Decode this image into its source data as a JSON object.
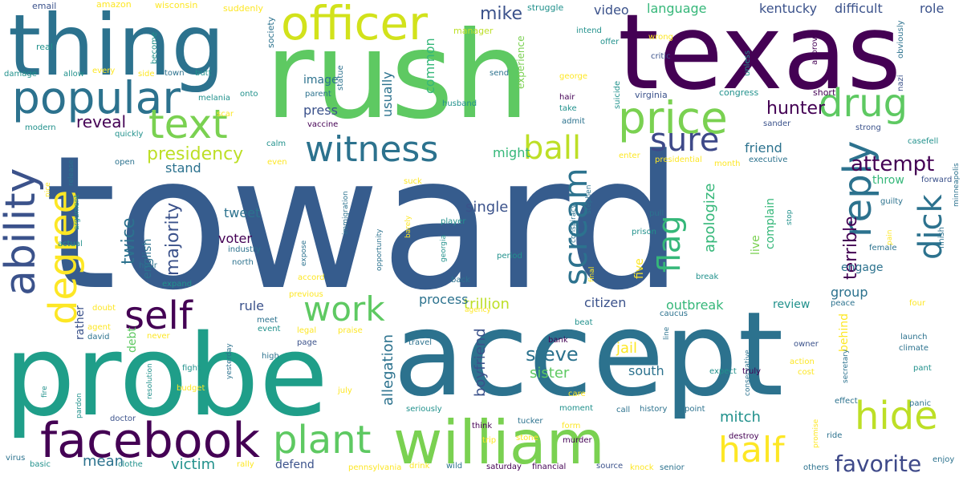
{
  "words": [
    {
      "text": "toward",
      "color": "#365c8d",
      "size": 230
    },
    {
      "text": "rush",
      "color": "#5ec962",
      "size": 150
    },
    {
      "text": "texas",
      "color": "#440154",
      "size": 130
    },
    {
      "text": "accept",
      "color": "#2c728e",
      "size": 145
    },
    {
      "text": "probe",
      "color": "#1f9e89",
      "size": 140
    },
    {
      "text": "thing",
      "color": "#2c728e",
      "size": 105
    },
    {
      "text": "william",
      "color": "#7ad151",
      "size": 75
    },
    {
      "text": "facebook",
      "color": "#440154",
      "size": 60
    },
    {
      "text": "officer",
      "color": "#d2e21b",
      "size": 58
    },
    {
      "text": "popular",
      "color": "#2c728e",
      "size": 55
    },
    {
      "text": "price",
      "color": "#7ad151",
      "size": 55
    },
    {
      "text": "ability",
      "color": "#3b528b",
      "size": 52
    },
    {
      "text": "text",
      "color": "#7ad151",
      "size": 50
    },
    {
      "text": "drug",
      "color": "#5ec962",
      "size": 48
    },
    {
      "text": "hide",
      "color": "#bddf26",
      "size": 48
    },
    {
      "text": "self",
      "color": "#440154",
      "size": 48
    },
    {
      "text": "plant",
      "color": "#5ec962",
      "size": 48
    },
    {
      "text": "degree",
      "color": "#fde725",
      "size": 48
    },
    {
      "text": "reply",
      "color": "#2c728e",
      "size": 48
    },
    {
      "text": "witness",
      "color": "#2c728e",
      "size": 44
    },
    {
      "text": "half",
      "color": "#fde725",
      "size": 44
    },
    {
      "text": "work",
      "color": "#5ec962",
      "size": 42
    },
    {
      "text": "sure",
      "color": "#3e4989",
      "size": 40
    },
    {
      "text": "ball",
      "color": "#bddf26",
      "size": 40
    },
    {
      "text": "scream",
      "color": "#2c728e",
      "size": 40
    },
    {
      "text": "dick",
      "color": "#2c728e",
      "size": 40
    },
    {
      "text": "flag",
      "color": "#35b779",
      "size": 38
    },
    {
      "text": "favorite",
      "color": "#3e4989",
      "size": 28
    },
    {
      "text": "attempt",
      "color": "#440154",
      "size": 26
    },
    {
      "text": "steve",
      "color": "#2c728e",
      "size": 24
    },
    {
      "text": "hunter",
      "color": "#440154",
      "size": 22
    },
    {
      "text": "twice",
      "color": "#2c728e",
      "size": 22
    },
    {
      "text": "majority",
      "color": "#3b528b",
      "size": 22
    },
    {
      "text": "presidency",
      "color": "#bddf26",
      "size": 22
    },
    {
      "text": "terrible",
      "color": "#440154",
      "size": 22
    },
    {
      "text": "mike",
      "color": "#3b528b",
      "size": 22
    },
    {
      "text": "reveal",
      "color": "#440154",
      "size": 20
    },
    {
      "text": "mitch",
      "color": "#21918c",
      "size": 18
    },
    {
      "text": "single",
      "color": "#3b528b",
      "size": 18
    },
    {
      "text": "jail",
      "color": "#fde725",
      "size": 18
    },
    {
      "text": "sister",
      "color": "#5ec962",
      "size": 18
    },
    {
      "text": "victim",
      "color": "#21918c",
      "size": 18
    },
    {
      "text": "mean",
      "color": "#2c728e",
      "size": 18
    },
    {
      "text": "trillion",
      "color": "#bddf26",
      "size": 18
    },
    {
      "text": "apologize",
      "color": "#35b779",
      "size": 18
    },
    {
      "text": "allegation",
      "color": "#2c728e",
      "size": 18
    },
    {
      "text": "boyfriend",
      "color": "#3b528b",
      "size": 18
    },
    {
      "text": "video",
      "color": "#3b528b",
      "size": 16
    },
    {
      "text": "language",
      "color": "#35b779",
      "size": 16
    },
    {
      "text": "kentucky",
      "color": "#3b528b",
      "size": 16
    },
    {
      "text": "difficult",
      "color": "#3b528b",
      "size": 16
    },
    {
      "text": "role",
      "color": "#3b528b",
      "size": 16
    },
    {
      "text": "usually",
      "color": "#2c728e",
      "size": 16
    },
    {
      "text": "common",
      "color": "#35b779",
      "size": 16
    },
    {
      "text": "image",
      "color": "#2c728e",
      "size": 14
    },
    {
      "text": "press",
      "color": "#3b528b",
      "size": 16
    },
    {
      "text": "friend",
      "color": "#2c728e",
      "size": 16
    },
    {
      "text": "stand",
      "color": "#2c728e",
      "size": 16
    },
    {
      "text": "might",
      "color": "#35b779",
      "size": 16
    },
    {
      "text": "tweet",
      "color": "#2c728e",
      "size": 16
    },
    {
      "text": "voter",
      "color": "#440154",
      "size": 16
    },
    {
      "text": "rule",
      "color": "#3b528b",
      "size": 16
    },
    {
      "text": "process",
      "color": "#2c728e",
      "size": 16
    },
    {
      "text": "citizen",
      "color": "#3b528b",
      "size": 16
    },
    {
      "text": "outbreak",
      "color": "#35b779",
      "size": 16
    },
    {
      "text": "review",
      "color": "#21918c",
      "size": 14
    },
    {
      "text": "group",
      "color": "#2c728e",
      "size": 16
    },
    {
      "text": "engage",
      "color": "#2c728e",
      "size": 14
    },
    {
      "text": "throw",
      "color": "#35b779",
      "size": 14
    },
    {
      "text": "south",
      "color": "#2c728e",
      "size": 16
    },
    {
      "text": "defend",
      "color": "#3b528b",
      "size": 14
    },
    {
      "text": "complain",
      "color": "#35b779",
      "size": 14
    },
    {
      "text": "live",
      "color": "#7ad151",
      "size": 14
    },
    {
      "text": "five",
      "color": "#fde725",
      "size": 14
    },
    {
      "text": "behind",
      "color": "#fde725",
      "size": 14
    },
    {
      "text": "debt",
      "color": "#5ec962",
      "size": 14
    },
    {
      "text": "english",
      "color": "#2c728e",
      "size": 14
    },
    {
      "text": "rather",
      "color": "#3b528b",
      "size": 14
    },
    {
      "text": "experience",
      "color": "#7ad151",
      "size": 12
    },
    {
      "text": "email",
      "color": "#3b528b",
      "size": 11
    },
    {
      "text": "amazon",
      "color": "#fde725",
      "size": 11
    },
    {
      "text": "wisconsin",
      "color": "#fde725",
      "size": 11
    },
    {
      "text": "suddenly",
      "color": "#fde725",
      "size": 11
    },
    {
      "text": "society",
      "color": "#2c728e",
      "size": 11
    },
    {
      "text": "struggle",
      "color": "#21918c",
      "size": 11
    },
    {
      "text": "real",
      "color": "#21918c",
      "size": 11
    },
    {
      "text": "become",
      "color": "#21918c",
      "size": 10
    },
    {
      "text": "manager",
      "color": "#bddf26",
      "size": 11
    },
    {
      "text": "intend",
      "color": "#21918c",
      "size": 10
    },
    {
      "text": "offer",
      "color": "#21918c",
      "size": 10
    },
    {
      "text": "wrong",
      "color": "#fde725",
      "size": 10
    },
    {
      "text": "obviously",
      "color": "#2c728e",
      "size": 10
    },
    {
      "text": "critic",
      "color": "#3b528b",
      "size": 10
    },
    {
      "text": "unless",
      "color": "#21918c",
      "size": 10
    },
    {
      "text": "approve",
      "color": "#440154",
      "size": 10
    },
    {
      "text": "damage",
      "color": "#21918c",
      "size": 10
    },
    {
      "text": "allow",
      "color": "#21918c",
      "size": 10
    },
    {
      "text": "every",
      "color": "#fde725",
      "size": 10
    },
    {
      "text": "side",
      "color": "#fde725",
      "size": 10
    },
    {
      "text": "town",
      "color": "#2c728e",
      "size": 10
    },
    {
      "text": "butt",
      "color": "#21918c",
      "size": 10
    },
    {
      "text": "statue",
      "color": "#2c728e",
      "size": 10
    },
    {
      "text": "send",
      "color": "#2c728e",
      "size": 10
    },
    {
      "text": "george",
      "color": "#fde725",
      "size": 10
    },
    {
      "text": "suicide",
      "color": "#21918c",
      "size": 10
    },
    {
      "text": "nazi",
      "color": "#3b528b",
      "size": 10
    },
    {
      "text": "melania",
      "color": "#21918c",
      "size": 10
    },
    {
      "text": "onto",
      "color": "#21918c",
      "size": 10
    },
    {
      "text": "parent",
      "color": "#2c728e",
      "size": 10
    },
    {
      "text": "hair",
      "color": "#440154",
      "size": 10
    },
    {
      "text": "virginia",
      "color": "#3b528b",
      "size": 11
    },
    {
      "text": "congress",
      "color": "#21918c",
      "size": 11
    },
    {
      "text": "short",
      "color": "#440154",
      "size": 11
    },
    {
      "text": "scar",
      "color": "#fde725",
      "size": 10
    },
    {
      "text": "husband",
      "color": "#21918c",
      "size": 10
    },
    {
      "text": "take",
      "color": "#21918c",
      "size": 10
    },
    {
      "text": "admit",
      "color": "#2c728e",
      "size": 10
    },
    {
      "text": "vaccine",
      "color": "#440154",
      "size": 10
    },
    {
      "text": "sander",
      "color": "#3b528b",
      "size": 10
    },
    {
      "text": "strong",
      "color": "#3b528b",
      "size": 10
    },
    {
      "text": "modern",
      "color": "#21918c",
      "size": 10
    },
    {
      "text": "quickly",
      "color": "#21918c",
      "size": 10
    },
    {
      "text": "calm",
      "color": "#21918c",
      "size": 10
    },
    {
      "text": "enter",
      "color": "#fde725",
      "size": 10
    },
    {
      "text": "casefell",
      "color": "#21918c",
      "size": 10
    },
    {
      "text": "release",
      "color": "#2c728e",
      "size": 9
    },
    {
      "text": "even",
      "color": "#fde725",
      "size": 10
    },
    {
      "text": "open",
      "color": "#2c728e",
      "size": 10
    },
    {
      "text": "presidential",
      "color": "#fde725",
      "size": 10
    },
    {
      "text": "month",
      "color": "#fde725",
      "size": 10
    },
    {
      "text": "executive",
      "color": "#2c728e",
      "size": 10
    },
    {
      "text": "nice",
      "color": "#fde725",
      "size": 9
    },
    {
      "text": "suck",
      "color": "#fde725",
      "size": 10
    },
    {
      "text": "forward",
      "color": "#3b528b",
      "size": 10
    },
    {
      "text": "argument",
      "color": "#21918c",
      "size": 9
    },
    {
      "text": "immigration",
      "color": "#2c728e",
      "size": 9
    },
    {
      "text": "stephen",
      "color": "#2c728e",
      "size": 9
    },
    {
      "text": "guilty",
      "color": "#2c728e",
      "size": 10
    },
    {
      "text": "barely",
      "color": "#fde725",
      "size": 9
    },
    {
      "text": "player",
      "color": "#21918c",
      "size": 10
    },
    {
      "text": "pull",
      "color": "#2c728e",
      "size": 10
    },
    {
      "text": "stop",
      "color": "#21918c",
      "size": 9
    },
    {
      "text": "actual",
      "color": "#21918c",
      "size": 10
    },
    {
      "text": "georgia",
      "color": "#21918c",
      "size": 9
    },
    {
      "text": "prison",
      "color": "#21918c",
      "size": 10
    },
    {
      "text": "pain",
      "color": "#fde725",
      "size": 9
    },
    {
      "text": "industry",
      "color": "#2c728e",
      "size": 10
    },
    {
      "text": "expose",
      "color": "#2c728e",
      "size": 9
    },
    {
      "text": "opportunity",
      "color": "#2c728e",
      "size": 9
    },
    {
      "text": "conspiracy",
      "color": "#2c728e",
      "size": 9
    },
    {
      "text": "female",
      "color": "#2c728e",
      "size": 10
    },
    {
      "text": "north",
      "color": "#2c728e",
      "size": 10
    },
    {
      "text": "period",
      "color": "#21918c",
      "size": 10
    },
    {
      "text": "minneapolis",
      "color": "#2c728e",
      "size": 9
    },
    {
      "text": "finish",
      "color": "#2c728e",
      "size": 10
    },
    {
      "text": "hour",
      "color": "#2c728e",
      "size": 10
    },
    {
      "text": "expand",
      "color": "#21918c",
      "size": 10
    },
    {
      "text": "accord",
      "color": "#fde725",
      "size": 10
    },
    {
      "text": "back",
      "color": "#2c728e",
      "size": 10
    },
    {
      "text": "break",
      "color": "#21918c",
      "size": 10
    },
    {
      "text": "previous",
      "color": "#fde725",
      "size": 10
    },
    {
      "text": "final",
      "color": "#fde725",
      "size": 9
    },
    {
      "text": "peace",
      "color": "#2c728e",
      "size": 10
    },
    {
      "text": "doubt",
      "color": "#fde725",
      "size": 10
    },
    {
      "text": "agency",
      "color": "#fde725",
      "size": 9
    },
    {
      "text": "caucus",
      "color": "#2c728e",
      "size": 10
    },
    {
      "text": "four",
      "color": "#fde725",
      "size": 10
    },
    {
      "text": "agent",
      "color": "#fde725",
      "size": 10
    },
    {
      "text": "meet",
      "color": "#2c728e",
      "size": 10
    },
    {
      "text": "event",
      "color": "#21918c",
      "size": 10
    },
    {
      "text": "beat",
      "color": "#21918c",
      "size": 10
    },
    {
      "text": "launch",
      "color": "#2c728e",
      "size": 10
    },
    {
      "text": "david",
      "color": "#2c728e",
      "size": 10
    },
    {
      "text": "legal",
      "color": "#fde725",
      "size": 10
    },
    {
      "text": "praise",
      "color": "#fde725",
      "size": 10
    },
    {
      "text": "bank",
      "color": "#440154",
      "size": 10
    },
    {
      "text": "line",
      "color": "#2c728e",
      "size": 9
    },
    {
      "text": "conservative",
      "color": "#2c728e",
      "size": 9
    },
    {
      "text": "climate",
      "color": "#2c728e",
      "size": 10
    },
    {
      "text": "never",
      "color": "#fde725",
      "size": 10
    },
    {
      "text": "page",
      "color": "#3b528b",
      "size": 10
    },
    {
      "text": "travel",
      "color": "#2c728e",
      "size": 10
    },
    {
      "text": "owner",
      "color": "#3b528b",
      "size": 10
    },
    {
      "text": "secretary",
      "color": "#2c728e",
      "size": 9
    },
    {
      "text": "action",
      "color": "#fde725",
      "size": 10
    },
    {
      "text": "cost",
      "color": "#fde725",
      "size": 10
    },
    {
      "text": "fight",
      "color": "#21918c",
      "size": 10
    },
    {
      "text": "yesterday",
      "color": "#2c728e",
      "size": 9
    },
    {
      "text": "resolution",
      "color": "#21918c",
      "size": 9
    },
    {
      "text": "high",
      "color": "#2c728e",
      "size": 10
    },
    {
      "text": "expect",
      "color": "#21918c",
      "size": 10
    },
    {
      "text": "truly",
      "color": "#440154",
      "size": 10
    },
    {
      "text": "pant",
      "color": "#21918c",
      "size": 10
    },
    {
      "text": "fire",
      "color": "#21918c",
      "size": 9
    },
    {
      "text": "budget",
      "color": "#fde725",
      "size": 10
    },
    {
      "text": "july",
      "color": "#fde725",
      "size": 10
    },
    {
      "text": "care",
      "color": "#fde725",
      "size": 10
    },
    {
      "text": "effect",
      "color": "#2c728e",
      "size": 10
    },
    {
      "text": "panic",
      "color": "#2c728e",
      "size": 10
    },
    {
      "text": "pardon",
      "color": "#21918c",
      "size": 9
    },
    {
      "text": "seriously",
      "color": "#21918c",
      "size": 10
    },
    {
      "text": "moment",
      "color": "#21918c",
      "size": 10
    },
    {
      "text": "call",
      "color": "#2c728e",
      "size": 10
    },
    {
      "text": "history",
      "color": "#2c728e",
      "size": 10
    },
    {
      "text": "point",
      "color": "#2c728e",
      "size": 10
    },
    {
      "text": "doctor",
      "color": "#3b528b",
      "size": 10
    },
    {
      "text": "think",
      "color": "#440154",
      "size": 10
    },
    {
      "text": "tucker",
      "color": "#2c728e",
      "size": 10
    },
    {
      "text": "form",
      "color": "#fde725",
      "size": 10
    },
    {
      "text": "promise",
      "color": "#fde725",
      "size": 9
    },
    {
      "text": "ride",
      "color": "#2c728e",
      "size": 10
    },
    {
      "text": "trip",
      "color": "#fde725",
      "size": 10
    },
    {
      "text": "stone",
      "color": "#fde725",
      "size": 10
    },
    {
      "text": "murder",
      "color": "#440154",
      "size": 10
    },
    {
      "text": "destroy",
      "color": "#440154",
      "size": 10
    },
    {
      "text": "virus",
      "color": "#2c728e",
      "size": 10
    },
    {
      "text": "basic",
      "color": "#21918c",
      "size": 10
    },
    {
      "text": "clothe",
      "color": "#21918c",
      "size": 10
    },
    {
      "text": "rally",
      "color": "#fde725",
      "size": 10
    },
    {
      "text": "pennsylvania",
      "color": "#fde725",
      "size": 10
    },
    {
      "text": "drink",
      "color": "#fde725",
      "size": 10
    },
    {
      "text": "wild",
      "color": "#2c728e",
      "size": 10
    },
    {
      "text": "saturday",
      "color": "#440154",
      "size": 10
    },
    {
      "text": "financial",
      "color": "#440154",
      "size": 10
    },
    {
      "text": "source",
      "color": "#3b528b",
      "size": 10
    },
    {
      "text": "knock",
      "color": "#fde725",
      "size": 10
    },
    {
      "text": "senior",
      "color": "#2c728e",
      "size": 10
    },
    {
      "text": "others",
      "color": "#2c728e",
      "size": 10
    },
    {
      "text": "enjoy",
      "color": "#2c728e",
      "size": 10
    }
  ]
}
